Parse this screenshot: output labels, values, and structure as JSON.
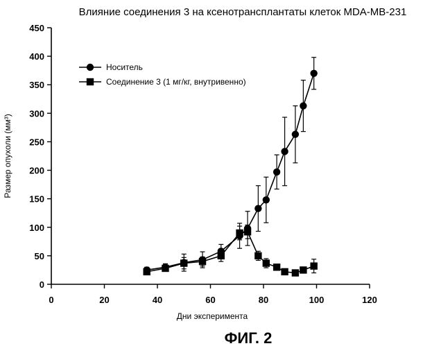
{
  "figure_label": "ФИГ. 2",
  "chart_data": {
    "type": "line",
    "title": "Влияние соединения 3 на ксенотрансплантаты клеток MDA-MB-231",
    "xlabel": "Дни эксперимента",
    "ylabel": "Размер опухоли (мм³)",
    "xlim": [
      0,
      120
    ],
    "ylim": [
      0,
      450
    ],
    "xticks": [
      0,
      20,
      40,
      60,
      80,
      100,
      120
    ],
    "yticks": [
      0,
      50,
      100,
      150,
      200,
      250,
      300,
      350,
      400,
      450
    ],
    "grid": false,
    "legend_position": "top-left",
    "series": [
      {
        "name": "Носитель",
        "marker": "circle",
        "color": "#000000",
        "x": [
          36,
          43,
          50,
          57,
          64,
          71,
          74,
          78,
          81,
          85,
          88,
          92,
          95,
          99
        ],
        "y": [
          25,
          30,
          38,
          43,
          58,
          85,
          98,
          133,
          148,
          197,
          233,
          263,
          313,
          370
        ],
        "error": [
          5,
          6,
          15,
          14,
          12,
          22,
          30,
          40,
          40,
          30,
          60,
          50,
          45,
          28
        ]
      },
      {
        "name": "Соединение 3 (1 мг/кг, внутривенно)",
        "marker": "square",
        "color": "#000000",
        "x": [
          36,
          43,
          50,
          57,
          64,
          71,
          74,
          78,
          81,
          85,
          88,
          92,
          95,
          99
        ],
        "y": [
          22,
          28,
          37,
          40,
          50,
          90,
          92,
          50,
          37,
          30,
          22,
          20,
          25,
          32
        ],
        "error": [
          3,
          5,
          10,
          8,
          10,
          12,
          12,
          8,
          8,
          5,
          4,
          4,
          5,
          12
        ]
      }
    ]
  }
}
